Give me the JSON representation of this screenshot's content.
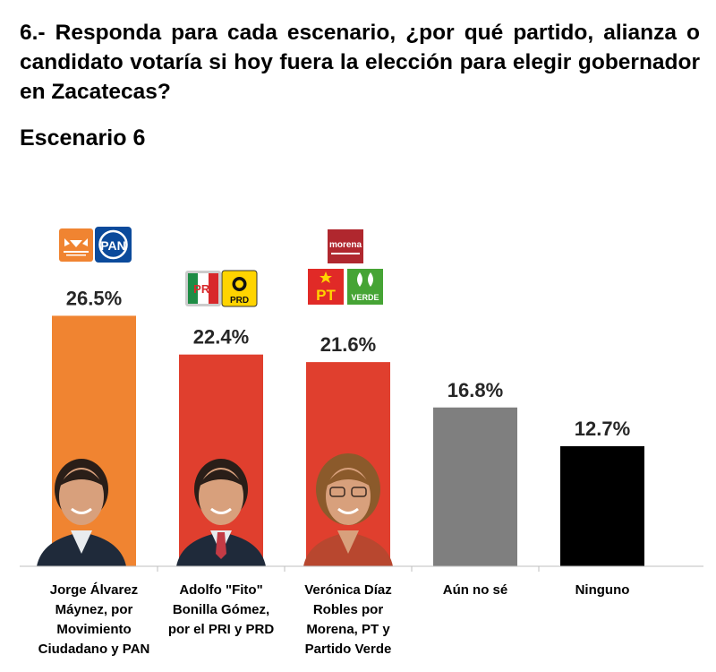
{
  "question": "6.- Responda para cada escenario, ¿por qué partido, alianza o candidato votaría si hoy fuera la elección para elegir gobernador en Zacatecas?",
  "subtitle": "Escenario 6",
  "logos": {
    "pan": "PAN",
    "pri": "PRI",
    "prd": "PRD",
    "morena": "morena",
    "pt": "PT",
    "verde": "VERDE"
  },
  "chart_data": {
    "type": "bar",
    "title": "Escenario 6",
    "unit": "%",
    "ylim": [
      0,
      30
    ],
    "grid": false,
    "categories": [
      [
        "Jorge Álvarez",
        "Máynez, por",
        "Movimiento",
        "Ciudadano y PAN"
      ],
      [
        "Adolfo \"Fito\"",
        "Bonilla Gómez,",
        "por el PRI y PRD"
      ],
      [
        "Verónica Díaz",
        "Robles por",
        "Morena, PT y",
        "Partido Verde"
      ],
      [
        "Aún no sé"
      ],
      [
        "Ninguno"
      ]
    ],
    "values": [
      26.5,
      22.4,
      21.6,
      16.8,
      12.7
    ],
    "labels": [
      "26.5%",
      "22.4%",
      "21.6%",
      "16.8%",
      "12.7%"
    ],
    "colors": [
      "#F08431",
      "#E03F2E",
      "#E03F2E",
      "#7F7F7F",
      "#000000"
    ]
  },
  "icons": {
    "candidates": [
      "candidate-photo-icon",
      "candidate-photo-icon",
      "candidate-photo-icon"
    ]
  }
}
